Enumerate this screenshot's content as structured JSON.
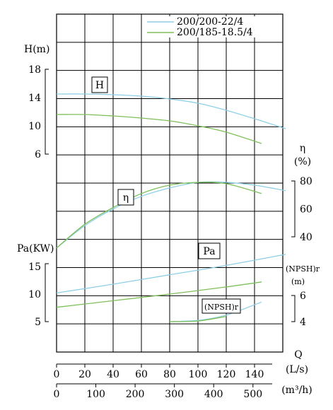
{
  "chart_data": {
    "type": "line",
    "legend": [
      {
        "name": "200/200-22/4",
        "color": "#8fcfe6"
      },
      {
        "name": "200/185-18.5/4",
        "color": "#7fbf5a"
      }
    ],
    "x_axes": [
      {
        "label": "(L/s)",
        "ticks": [
          "0",
          "20",
          "40",
          "60",
          "80",
          "100",
          "120",
          "140"
        ],
        "range": [
          0,
          160
        ]
      },
      {
        "label": "(m³/h)",
        "ticks": [
          "0",
          "100",
          "200",
          "300",
          "400",
          "500"
        ],
        "range": [
          0,
          576
        ]
      }
    ],
    "q_label": "Q",
    "head_axis": {
      "label": "H(m)",
      "ticks": [
        "6",
        "10",
        "14",
        "18"
      ]
    },
    "eff_axis": {
      "label": "η",
      "unit": "(%)",
      "ticks": [
        "40",
        "60",
        "80"
      ]
    },
    "power_axis": {
      "label": "Pa(KW)",
      "ticks": [
        "5",
        "10",
        "15"
      ]
    },
    "npsh_axis": {
      "label": "(NPSH)r",
      "unit": "(m)",
      "ticks": [
        "4",
        "6"
      ]
    },
    "curve_labels": {
      "head": "H",
      "eff": "η",
      "power": "Pa",
      "npsh": "(NPSH)r"
    },
    "series": [
      {
        "name": "200/200-22/4",
        "curve": "H",
        "x": [
          0,
          20,
          40,
          60,
          80,
          100,
          120,
          140,
          162
        ],
        "y": [
          14.5,
          14.5,
          14.4,
          14.2,
          13.8,
          13.2,
          12.2,
          11.0,
          9.6
        ]
      },
      {
        "name": "200/185-18.5/4",
        "curve": "H",
        "x": [
          0,
          20,
          40,
          60,
          80,
          100,
          120,
          145
        ],
        "y": [
          11.6,
          11.6,
          11.4,
          11.1,
          10.7,
          10.0,
          9.1,
          7.5
        ]
      },
      {
        "name": "200/200-22/4",
        "curve": "η",
        "x": [
          0,
          20,
          40,
          60,
          80,
          100,
          120,
          140,
          162
        ],
        "y": [
          32,
          48,
          60,
          69,
          75,
          79,
          79,
          77,
          73
        ]
      },
      {
        "name": "200/185-18.5/4",
        "curve": "η",
        "x": [
          0,
          20,
          40,
          60,
          80,
          100,
          120,
          145
        ],
        "y": [
          32,
          49,
          61,
          71,
          77,
          79,
          78,
          71
        ]
      },
      {
        "name": "200/200-22/4",
        "curve": "Pa",
        "x": [
          0,
          40,
          80,
          120,
          162
        ],
        "y": [
          10.2,
          11.8,
          13.5,
          15.2,
          17.2
        ]
      },
      {
        "name": "200/185-18.5/4",
        "curve": "Pa",
        "x": [
          0,
          40,
          80,
          120,
          145
        ],
        "y": [
          7.6,
          8.8,
          10.0,
          11.3,
          12.2
        ]
      },
      {
        "name": "200/200-22/4",
        "curve": "(NPSH)r",
        "x": [
          80,
          100,
          120,
          145
        ],
        "y": [
          4.0,
          4.1,
          4.5,
          5.5
        ]
      },
      {
        "name": "200/185-18.5/4",
        "curve": "(NPSH)r",
        "x": [
          80,
          100,
          120
        ],
        "y": [
          4.0,
          4.05,
          4.4
        ]
      }
    ]
  }
}
